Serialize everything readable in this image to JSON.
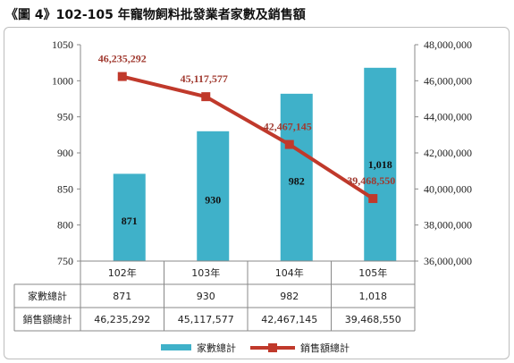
{
  "title": "《圖 4》102-105 年寵物飼料批發業者家數及銷售額",
  "chart_data": {
    "type": "bar",
    "categories": [
      "102年",
      "103年",
      "104年",
      "105年"
    ],
    "series": [
      {
        "name": "家數總計",
        "type": "bar",
        "axis": "left",
        "values": [
          871,
          930,
          982,
          1018
        ],
        "labels": [
          "871",
          "930",
          "982",
          "1,018"
        ],
        "color": "#3fb1c9"
      },
      {
        "name": "銷售額總計",
        "type": "line",
        "axis": "right",
        "values": [
          46235292,
          45117577,
          42467145,
          39468550
        ],
        "labels": [
          "46,235,292",
          "45,117,577",
          "42,467,145",
          "39,468,550"
        ],
        "color": "#c0392b"
      }
    ],
    "y_left": {
      "min": 750,
      "max": 1050,
      "step": 50,
      "ticks": [
        "750",
        "800",
        "850",
        "900",
        "950",
        "1000",
        "1050"
      ]
    },
    "y_right": {
      "min": 36000000,
      "max": 48000000,
      "step": 2000000,
      "ticks": [
        "36,000,000",
        "38,000,000",
        "40,000,000",
        "42,000,000",
        "44,000,000",
        "46,000,000",
        "48,000,000"
      ]
    },
    "grid": false,
    "legend": "bottom",
    "data_table": true
  }
}
